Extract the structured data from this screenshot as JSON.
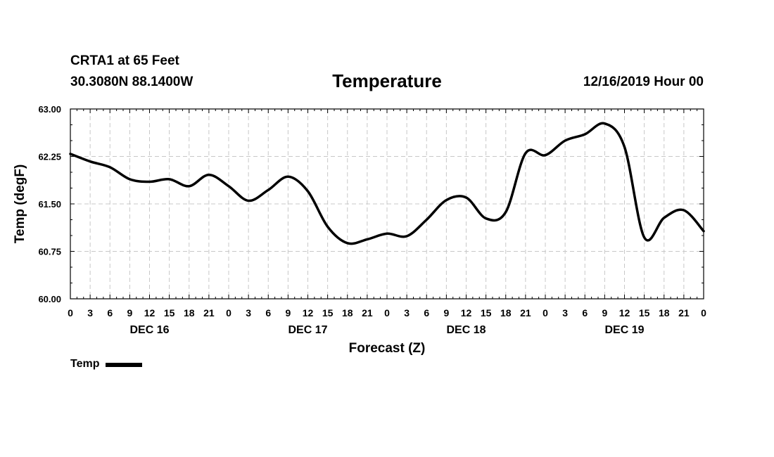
{
  "header": {
    "station": "CRTA1 at 65 Feet",
    "coords": "30.3080N 88.1400W",
    "run_time": "12/16/2019 Hour 00"
  },
  "legend": {
    "label": "Temp",
    "color": "#000000"
  },
  "chart_data": {
    "type": "line",
    "title": "Temperature",
    "xlabel": "Forecast (Z)",
    "ylabel": "Temp (degF)",
    "ylim": [
      60.0,
      63.0
    ],
    "yticks": [
      "60.00",
      "60.75",
      "61.50",
      "62.25",
      "63.00"
    ],
    "xlim": [
      0,
      96
    ],
    "xtick_labels": [
      "0",
      "3",
      "6",
      "9",
      "12",
      "15",
      "18",
      "21",
      "0",
      "3",
      "6",
      "9",
      "12",
      "15",
      "18",
      "21",
      "0",
      "3",
      "6",
      "9",
      "12",
      "15",
      "18",
      "21",
      "0",
      "3",
      "6",
      "9",
      "12",
      "15",
      "18",
      "21",
      "0"
    ],
    "day_labels": [
      {
        "label": "DEC 16",
        "hour": 12
      },
      {
        "label": "DEC 17",
        "hour": 36
      },
      {
        "label": "DEC 18",
        "hour": 60
      },
      {
        "label": "DEC 19",
        "hour": 84
      }
    ],
    "grid": true,
    "series": [
      {
        "name": "Temp",
        "color": "#000000",
        "x": [
          0,
          3,
          6,
          9,
          12,
          15,
          18,
          21,
          24,
          27,
          30,
          33,
          36,
          39,
          42,
          45,
          48,
          51,
          54,
          57,
          60,
          63,
          66,
          69,
          72,
          75,
          78,
          81,
          84,
          87,
          90,
          93,
          96
        ],
        "values": [
          62.29,
          62.17,
          62.08,
          61.89,
          61.85,
          61.89,
          61.78,
          61.96,
          61.78,
          61.55,
          61.72,
          61.93,
          61.7,
          61.14,
          60.88,
          60.94,
          61.03,
          60.99,
          61.25,
          61.56,
          61.6,
          61.27,
          61.37,
          62.3,
          62.27,
          62.5,
          62.6,
          62.77,
          62.4,
          60.97,
          61.28,
          61.4,
          61.07
        ]
      }
    ]
  }
}
